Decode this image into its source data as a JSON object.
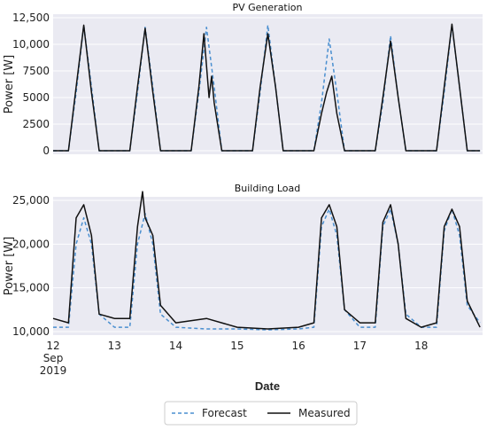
{
  "chart_data": [
    {
      "type": "line",
      "title": "PV Generation",
      "ylabel": "Power [W]",
      "ylim": [
        0,
        12500
      ],
      "yticks": [
        0,
        2500,
        5000,
        7500,
        10000,
        12500
      ],
      "ytick_labels": [
        "0",
        "2500",
        "5000",
        "7500",
        "10,000",
        "12,500"
      ],
      "series": [
        {
          "name": "Forecast",
          "color": "#4a8fd0",
          "style": "dashed",
          "x": [
            "2019-09-12 00:00",
            "2019-09-12 06:00",
            "2019-09-12 09:00",
            "2019-09-12 12:00",
            "2019-09-12 15:00",
            "2019-09-12 18:00",
            "2019-09-13 06:00",
            "2019-09-13 09:00",
            "2019-09-13 12:00",
            "2019-09-13 15:00",
            "2019-09-13 18:00",
            "2019-09-14 06:00",
            "2019-09-14 09:00",
            "2019-09-14 12:00",
            "2019-09-14 15:00",
            "2019-09-14 18:00",
            "2019-09-15 06:00",
            "2019-09-15 09:00",
            "2019-09-15 12:00",
            "2019-09-15 15:00",
            "2019-09-15 18:00",
            "2019-09-16 06:00",
            "2019-09-16 09:00",
            "2019-09-16 12:00",
            "2019-09-16 15:00",
            "2019-09-16 18:00",
            "2019-09-17 06:00",
            "2019-09-17 09:00",
            "2019-09-17 12:00",
            "2019-09-17 15:00",
            "2019-09-17 18:00",
            "2019-09-18 06:00",
            "2019-09-18 09:00",
            "2019-09-18 12:00",
            "2019-09-18 15:00",
            "2019-09-18 18:00",
            "2019-09-18 23:00"
          ],
          "values": [
            0,
            0,
            5500,
            11800,
            6000,
            0,
            0,
            5500,
            11600,
            6000,
            0,
            0,
            5500,
            11600,
            6000,
            0,
            0,
            5500,
            11800,
            6000,
            0,
            0,
            4500,
            10500,
            5500,
            0,
            0,
            4500,
            10800,
            5000,
            0,
            0,
            5500,
            11800,
            6000,
            0,
            0
          ]
        },
        {
          "name": "Measured",
          "color": "#111111",
          "style": "solid",
          "x": [
            "2019-09-12 00:00",
            "2019-09-12 06:00",
            "2019-09-12 09:00",
            "2019-09-12 12:00",
            "2019-09-12 15:00",
            "2019-09-12 18:00",
            "2019-09-13 06:00",
            "2019-09-13 09:00",
            "2019-09-13 12:00",
            "2019-09-13 15:00",
            "2019-09-13 18:00",
            "2019-09-14 06:00",
            "2019-09-14 09:00",
            "2019-09-14 11:00",
            "2019-09-14 13:00",
            "2019-09-14 14:00",
            "2019-09-14 15:00",
            "2019-09-14 18:00",
            "2019-09-15 06:00",
            "2019-09-15 09:00",
            "2019-09-15 12:00",
            "2019-09-15 15:00",
            "2019-09-15 18:00",
            "2019-09-16 06:00",
            "2019-09-16 09:00",
            "2019-09-16 11:00",
            "2019-09-16 13:00",
            "2019-09-16 15:00",
            "2019-09-16 18:00",
            "2019-09-17 06:00",
            "2019-09-17 09:00",
            "2019-09-17 12:00",
            "2019-09-17 15:00",
            "2019-09-17 18:00",
            "2019-09-18 06:00",
            "2019-09-18 09:00",
            "2019-09-18 12:00",
            "2019-09-18 15:00",
            "2019-09-18 18:00",
            "2019-09-18 23:00"
          ],
          "values": [
            0,
            0,
            6000,
            11800,
            5500,
            0,
            0,
            6000,
            11500,
            5500,
            0,
            0,
            6000,
            11000,
            5000,
            7000,
            4500,
            0,
            0,
            6000,
            11000,
            6000,
            0,
            0,
            3500,
            5500,
            7000,
            3500,
            0,
            0,
            5000,
            10300,
            5000,
            0,
            0,
            6000,
            11900,
            6000,
            0,
            0
          ]
        }
      ]
    },
    {
      "type": "line",
      "title": "Building Load",
      "ylabel": "Power [W]",
      "xlabel": "Date",
      "ylim": [
        10000,
        25000
      ],
      "yticks": [
        10000,
        15000,
        20000,
        25000
      ],
      "ytick_labels": [
        "10,000",
        "15,000",
        "20,000",
        "25,000"
      ],
      "xticks": [
        "12\nSep\n2019",
        "13",
        "14",
        "15",
        "16",
        "17",
        "18"
      ],
      "series": [
        {
          "name": "Forecast",
          "color": "#4a8fd0",
          "style": "dashed",
          "x": [
            "2019-09-12 00:00",
            "2019-09-12 06:00",
            "2019-09-12 09:00",
            "2019-09-12 12:00",
            "2019-09-12 15:00",
            "2019-09-12 18:00",
            "2019-09-13 00:00",
            "2019-09-13 06:00",
            "2019-09-13 09:00",
            "2019-09-13 12:00",
            "2019-09-13 15:00",
            "2019-09-13 18:00",
            "2019-09-14 00:00",
            "2019-09-14 12:00",
            "2019-09-15 00:00",
            "2019-09-15 12:00",
            "2019-09-16 00:00",
            "2019-09-16 06:00",
            "2019-09-16 09:00",
            "2019-09-16 12:00",
            "2019-09-16 15:00",
            "2019-09-16 18:00",
            "2019-09-17 00:00",
            "2019-09-17 06:00",
            "2019-09-17 09:00",
            "2019-09-17 12:00",
            "2019-09-17 15:00",
            "2019-09-17 18:00",
            "2019-09-18 00:00",
            "2019-09-18 06:00",
            "2019-09-18 09:00",
            "2019-09-18 12:00",
            "2019-09-18 15:00",
            "2019-09-18 18:00",
            "2019-09-18 23:00"
          ],
          "values": [
            10500,
            10500,
            20000,
            23000,
            20000,
            12000,
            10500,
            10500,
            20000,
            23500,
            20000,
            12000,
            10500,
            10300,
            10300,
            10200,
            10300,
            10500,
            22000,
            24000,
            21000,
            12500,
            10500,
            10500,
            22000,
            24000,
            20000,
            12000,
            10500,
            10500,
            21500,
            24000,
            21000,
            13000,
            11000
          ]
        },
        {
          "name": "Measured",
          "color": "#111111",
          "style": "solid",
          "x": [
            "2019-09-12 00:00",
            "2019-09-12 06:00",
            "2019-09-12 09:00",
            "2019-09-12 12:00",
            "2019-09-12 15:00",
            "2019-09-12 18:00",
            "2019-09-13 00:00",
            "2019-09-13 06:00",
            "2019-09-13 09:00",
            "2019-09-13 11:00",
            "2019-09-13 12:00",
            "2019-09-13 15:00",
            "2019-09-13 18:00",
            "2019-09-14 00:00",
            "2019-09-14 12:00",
            "2019-09-15 00:00",
            "2019-09-15 12:00",
            "2019-09-16 00:00",
            "2019-09-16 06:00",
            "2019-09-16 09:00",
            "2019-09-16 12:00",
            "2019-09-16 15:00",
            "2019-09-16 18:00",
            "2019-09-17 00:00",
            "2019-09-17 06:00",
            "2019-09-17 09:00",
            "2019-09-17 12:00",
            "2019-09-17 15:00",
            "2019-09-17 18:00",
            "2019-09-18 00:00",
            "2019-09-18 06:00",
            "2019-09-18 09:00",
            "2019-09-18 12:00",
            "2019-09-18 15:00",
            "2019-09-18 18:00",
            "2019-09-18 23:00"
          ],
          "values": [
            11500,
            11000,
            23000,
            24500,
            21000,
            12000,
            11500,
            11500,
            22000,
            26000,
            23000,
            21000,
            13000,
            11000,
            11500,
            10500,
            10300,
            10500,
            11000,
            23000,
            24500,
            22000,
            12500,
            11000,
            11000,
            22500,
            24500,
            20000,
            11500,
            10500,
            11000,
            22000,
            24000,
            22000,
            13500,
            10500
          ]
        }
      ]
    }
  ],
  "legend": {
    "forecast_label": "Forecast",
    "measured_label": "Measured",
    "placement": "bottom-center"
  }
}
